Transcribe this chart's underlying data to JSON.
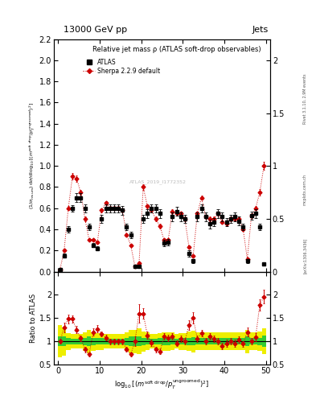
{
  "title_top": "13000 GeV pp",
  "title_right": "Jets",
  "plot_title": "Relative jet mass ρ (ATLAS soft-drop observables)",
  "ylabel_main": "(1/σ_{resum}) dσ/d log_{10}[(m^{soft drop}/p_T^{ungroomed})^2]",
  "ylabel_ratio": "Ratio to ATLAS",
  "watermark": "ATLAS_2019_I1772352",
  "rivet_label": "Rivet 3.1.10, 2.9M events",
  "arxiv_label": "[arXiv:1306.3436]",
  "mcplots_label": "mcplots.cern.ch",
  "legend_atlas": "ATLAS",
  "legend_sherpa": "Sherpa 2.2.9 default",
  "xlim": [
    -1,
    51
  ],
  "ylim_main": [
    0,
    2.2
  ],
  "ylim_ratio": [
    0.5,
    2.5
  ],
  "yticks_main": [
    0.0,
    0.2,
    0.4,
    0.6,
    0.8,
    1.0,
    1.2,
    1.4,
    1.6,
    1.8,
    2.0,
    2.2
  ],
  "yticks_ratio": [
    0.5,
    1.0,
    1.5,
    2.0
  ],
  "xticks": [
    0,
    10,
    20,
    30,
    40,
    50
  ],
  "atlas_x": [
    0.5,
    1.5,
    2.5,
    3.5,
    4.5,
    5.5,
    6.5,
    7.5,
    8.5,
    9.5,
    10.5,
    11.5,
    12.5,
    13.5,
    14.5,
    15.5,
    16.5,
    17.5,
    18.5,
    19.5,
    20.5,
    21.5,
    22.5,
    23.5,
    24.5,
    25.5,
    26.5,
    27.5,
    28.5,
    29.5,
    30.5,
    31.5,
    32.5,
    33.5,
    34.5,
    35.5,
    36.5,
    37.5,
    38.5,
    39.5,
    40.5,
    41.5,
    42.5,
    43.5,
    44.5,
    45.5,
    46.5,
    47.5,
    48.5,
    49.5
  ],
  "atlas_y": [
    0.02,
    0.15,
    0.4,
    0.6,
    0.7,
    0.7,
    0.6,
    0.42,
    0.25,
    0.22,
    0.5,
    0.6,
    0.6,
    0.6,
    0.6,
    0.58,
    0.42,
    0.35,
    0.05,
    0.05,
    0.5,
    0.55,
    0.6,
    0.6,
    0.55,
    0.27,
    0.28,
    0.52,
    0.57,
    0.52,
    0.5,
    0.17,
    0.1,
    0.52,
    0.6,
    0.52,
    0.45,
    0.47,
    0.55,
    0.52,
    0.47,
    0.5,
    0.52,
    0.48,
    0.42,
    0.1,
    0.53,
    0.55,
    0.42,
    0.07
  ],
  "atlas_yerr": [
    0.01,
    0.02,
    0.03,
    0.03,
    0.04,
    0.04,
    0.04,
    0.03,
    0.02,
    0.02,
    0.04,
    0.04,
    0.04,
    0.04,
    0.04,
    0.04,
    0.03,
    0.03,
    0.01,
    0.01,
    0.04,
    0.04,
    0.04,
    0.04,
    0.04,
    0.03,
    0.03,
    0.04,
    0.04,
    0.04,
    0.04,
    0.03,
    0.02,
    0.04,
    0.04,
    0.04,
    0.04,
    0.04,
    0.04,
    0.04,
    0.04,
    0.04,
    0.04,
    0.04,
    0.03,
    0.02,
    0.04,
    0.04,
    0.03,
    0.01
  ],
  "sherpa_x": [
    0.5,
    1.5,
    2.5,
    3.5,
    4.5,
    5.5,
    6.5,
    7.5,
    8.5,
    9.5,
    10.5,
    11.5,
    12.5,
    13.5,
    14.5,
    15.5,
    16.5,
    17.5,
    18.5,
    19.5,
    20.5,
    21.5,
    22.5,
    23.5,
    24.5,
    25.5,
    26.5,
    27.5,
    28.5,
    29.5,
    30.5,
    31.5,
    32.5,
    33.5,
    34.5,
    35.5,
    36.5,
    37.5,
    38.5,
    39.5,
    40.5,
    41.5,
    42.5,
    43.5,
    44.5,
    45.5,
    46.5,
    47.5,
    48.5,
    49.5
  ],
  "sherpa_y": [
    0.02,
    0.2,
    0.6,
    0.9,
    0.88,
    0.75,
    0.5,
    0.3,
    0.3,
    0.28,
    0.58,
    0.65,
    0.6,
    0.6,
    0.6,
    0.58,
    0.35,
    0.25,
    0.05,
    0.08,
    0.8,
    0.62,
    0.58,
    0.5,
    0.43,
    0.3,
    0.3,
    0.57,
    0.55,
    0.55,
    0.5,
    0.23,
    0.15,
    0.55,
    0.7,
    0.52,
    0.5,
    0.5,
    0.55,
    0.47,
    0.45,
    0.5,
    0.5,
    0.5,
    0.4,
    0.12,
    0.53,
    0.6,
    0.75,
    1.0
  ],
  "sherpa_yerr": [
    0.005,
    0.01,
    0.02,
    0.03,
    0.03,
    0.02,
    0.02,
    0.01,
    0.01,
    0.01,
    0.02,
    0.02,
    0.02,
    0.02,
    0.02,
    0.02,
    0.01,
    0.01,
    0.005,
    0.005,
    0.03,
    0.02,
    0.02,
    0.02,
    0.02,
    0.01,
    0.01,
    0.02,
    0.02,
    0.02,
    0.02,
    0.01,
    0.01,
    0.02,
    0.02,
    0.02,
    0.02,
    0.02,
    0.02,
    0.02,
    0.02,
    0.02,
    0.02,
    0.02,
    0.01,
    0.005,
    0.02,
    0.02,
    0.03,
    0.04
  ],
  "ratio_x": [
    0.5,
    1.5,
    2.5,
    3.5,
    4.5,
    5.5,
    6.5,
    7.5,
    8.5,
    9.5,
    10.5,
    11.5,
    12.5,
    13.5,
    14.5,
    15.5,
    16.5,
    17.5,
    18.5,
    19.5,
    20.5,
    21.5,
    22.5,
    23.5,
    24.5,
    25.5,
    26.5,
    27.5,
    28.5,
    29.5,
    30.5,
    31.5,
    32.5,
    33.5,
    34.5,
    35.5,
    36.5,
    37.5,
    38.5,
    39.5,
    40.5,
    41.5,
    42.5,
    43.5,
    44.5,
    45.5,
    46.5,
    47.5,
    48.5,
    49.5
  ],
  "ratio_y": [
    1.0,
    1.3,
    1.48,
    1.48,
    1.25,
    1.07,
    0.83,
    0.72,
    1.2,
    1.27,
    1.16,
    1.08,
    1.0,
    1.0,
    1.0,
    1.0,
    0.83,
    0.72,
    1.0,
    1.6,
    1.6,
    1.13,
    0.97,
    0.83,
    0.78,
    1.11,
    1.07,
    1.1,
    0.96,
    1.06,
    1.0,
    1.35,
    1.5,
    1.06,
    1.17,
    1.0,
    1.11,
    1.06,
    1.0,
    0.9,
    0.96,
    1.0,
    0.96,
    1.04,
    0.95,
    1.2,
    1.0,
    1.09,
    1.79,
    1.96
  ],
  "ratio_yerr": [
    0.05,
    0.1,
    0.1,
    0.08,
    0.08,
    0.06,
    0.06,
    0.05,
    0.08,
    0.08,
    0.06,
    0.06,
    0.06,
    0.06,
    0.06,
    0.06,
    0.05,
    0.05,
    0.1,
    0.2,
    0.12,
    0.08,
    0.07,
    0.06,
    0.06,
    0.07,
    0.07,
    0.07,
    0.06,
    0.07,
    0.07,
    0.1,
    0.12,
    0.07,
    0.07,
    0.07,
    0.07,
    0.07,
    0.07,
    0.07,
    0.07,
    0.07,
    0.07,
    0.07,
    0.06,
    0.1,
    0.07,
    0.08,
    0.12,
    0.15
  ],
  "green_band_lo": [
    0.9,
    0.9,
    0.93,
    0.94,
    0.94,
    0.94,
    0.92,
    0.9,
    0.92,
    0.93,
    0.93,
    0.94,
    0.94,
    0.94,
    0.94,
    0.94,
    0.92,
    0.9,
    0.9,
    0.9,
    0.92,
    0.93,
    0.94,
    0.94,
    0.93,
    0.92,
    0.92,
    0.93,
    0.94,
    0.93,
    0.93,
    0.92,
    0.91,
    0.93,
    0.93,
    0.93,
    0.93,
    0.93,
    0.93,
    0.93,
    0.93,
    0.93,
    0.93,
    0.93,
    0.93,
    0.9,
    0.93,
    0.93,
    0.92,
    0.88
  ],
  "green_band_hi": [
    1.1,
    1.1,
    1.07,
    1.06,
    1.06,
    1.06,
    1.08,
    1.1,
    1.08,
    1.07,
    1.07,
    1.06,
    1.06,
    1.06,
    1.06,
    1.06,
    1.08,
    1.1,
    1.1,
    1.1,
    1.08,
    1.07,
    1.06,
    1.06,
    1.07,
    1.08,
    1.08,
    1.07,
    1.06,
    1.07,
    1.07,
    1.08,
    1.09,
    1.07,
    1.07,
    1.07,
    1.07,
    1.07,
    1.07,
    1.07,
    1.07,
    1.07,
    1.07,
    1.07,
    1.07,
    1.1,
    1.07,
    1.07,
    1.08,
    1.12
  ],
  "yellow_band_lo": [
    0.65,
    0.7,
    0.82,
    0.84,
    0.84,
    0.84,
    0.8,
    0.75,
    0.8,
    0.82,
    0.82,
    0.84,
    0.84,
    0.84,
    0.84,
    0.84,
    0.8,
    0.75,
    0.75,
    0.72,
    0.78,
    0.81,
    0.84,
    0.84,
    0.82,
    0.8,
    0.8,
    0.81,
    0.84,
    0.82,
    0.82,
    0.79,
    0.77,
    0.81,
    0.81,
    0.81,
    0.81,
    0.81,
    0.81,
    0.81,
    0.81,
    0.81,
    0.81,
    0.81,
    0.81,
    0.75,
    0.81,
    0.81,
    0.79,
    0.72
  ],
  "yellow_band_hi": [
    1.35,
    1.3,
    1.18,
    1.16,
    1.16,
    1.16,
    1.2,
    1.25,
    1.2,
    1.18,
    1.18,
    1.16,
    1.16,
    1.16,
    1.16,
    1.16,
    1.2,
    1.25,
    1.25,
    1.28,
    1.22,
    1.19,
    1.16,
    1.16,
    1.18,
    1.2,
    1.2,
    1.19,
    1.16,
    1.18,
    1.18,
    1.21,
    1.23,
    1.19,
    1.19,
    1.19,
    1.19,
    1.19,
    1.19,
    1.19,
    1.19,
    1.19,
    1.19,
    1.19,
    1.19,
    1.25,
    1.19,
    1.19,
    1.21,
    1.28
  ],
  "color_atlas": "#000000",
  "color_sherpa": "#cc0000",
  "color_green_band": "#33cc33",
  "color_yellow_band": "#eeee00",
  "bg_color": "#ffffff"
}
